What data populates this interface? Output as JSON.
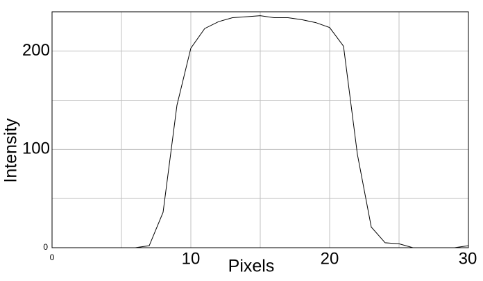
{
  "chart_data": {
    "type": "line",
    "x_label": "Pixels",
    "y_label": "Intensity",
    "x": [
      0,
      1,
      2,
      3,
      4,
      5,
      6,
      7,
      8,
      9,
      10,
      11,
      12,
      13,
      14,
      15,
      16,
      17,
      18,
      19,
      20,
      21,
      22,
      23,
      24,
      25,
      26,
      27,
      28,
      29,
      30
    ],
    "series": [
      {
        "color": "#000000",
        "values": [
          0,
          0,
          0,
          0,
          0,
          0,
          0,
          2,
          36,
          145,
          203,
          223,
          230,
          234,
          235,
          236,
          234,
          234,
          232,
          229,
          224,
          205,
          95,
          21,
          5,
          4,
          0,
          0,
          0,
          0,
          2
        ]
      }
    ],
    "xlim": [
      0,
      30
    ],
    "ylim": [
      0,
      240
    ],
    "xticks": [
      0,
      10,
      20,
      30
    ],
    "yticks": [
      0,
      100,
      200
    ],
    "x_minor_ticks": [
      5,
      15,
      25
    ],
    "y_minor_ticks": [
      50,
      150
    ],
    "grid": true
  }
}
